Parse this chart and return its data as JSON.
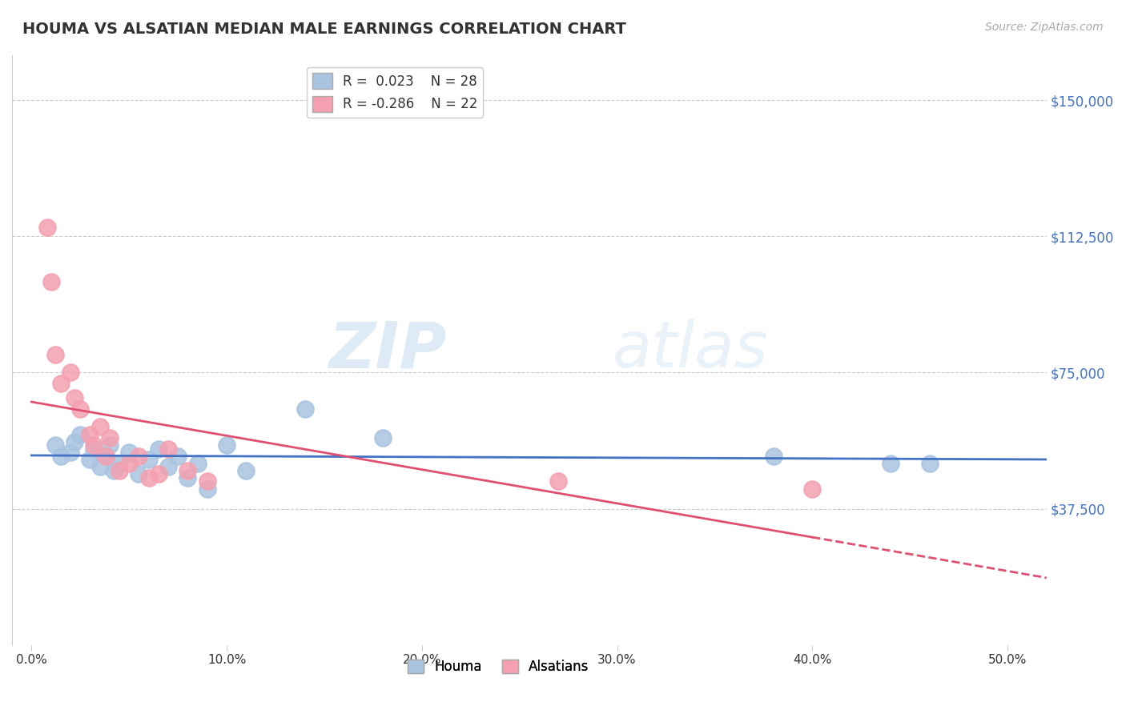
{
  "title": "HOUMA VS ALSATIAN MEDIAN MALE EARNINGS CORRELATION CHART",
  "source": "Source: ZipAtlas.com",
  "xlabel_ticks": [
    "0.0%",
    "10.0%",
    "20.0%",
    "30.0%",
    "40.0%",
    "50.0%"
  ],
  "xlabel_vals": [
    0.0,
    10.0,
    20.0,
    30.0,
    40.0,
    50.0
  ],
  "ylabel_ticks": [
    "$150,000",
    "$112,500",
    "$75,000",
    "$37,500"
  ],
  "ylabel_vals": [
    150000,
    112500,
    75000,
    37500
  ],
  "ylim": [
    0,
    162500
  ],
  "xlim": [
    -1.0,
    52.0
  ],
  "houma_R": 0.023,
  "houma_N": 28,
  "alsatian_R": -0.286,
  "alsatian_N": 22,
  "houma_color": "#a8c4e0",
  "alsatian_color": "#f4a0b0",
  "houma_line_color": "#4472C4",
  "alsatian_line_color": "#E05070",
  "watermark_zip": "ZIP",
  "watermark_atlas": "atlas",
  "houma_x": [
    1.2,
    1.5,
    2.0,
    2.2,
    2.5,
    3.0,
    3.2,
    3.5,
    3.8,
    4.0,
    4.2,
    4.5,
    5.0,
    5.5,
    6.0,
    6.5,
    7.0,
    7.5,
    8.0,
    8.5,
    9.0,
    10.0,
    11.0,
    14.0,
    18.0,
    38.0,
    44.0,
    46.0
  ],
  "houma_y": [
    55000,
    52000,
    53000,
    56000,
    58000,
    51000,
    54000,
    49000,
    52000,
    55000,
    48000,
    50000,
    53000,
    47000,
    51000,
    54000,
    49000,
    52000,
    46000,
    50000,
    43000,
    55000,
    48000,
    65000,
    57000,
    52000,
    50000,
    50000
  ],
  "alsatian_x": [
    0.8,
    1.0,
    1.2,
    1.5,
    2.0,
    2.2,
    2.5,
    3.0,
    3.2,
    3.5,
    3.8,
    4.0,
    4.5,
    5.0,
    5.5,
    6.0,
    6.5,
    7.0,
    8.0,
    9.0,
    27.0,
    40.0
  ],
  "alsatian_y": [
    115000,
    100000,
    80000,
    72000,
    75000,
    68000,
    65000,
    58000,
    55000,
    60000,
    52000,
    57000,
    48000,
    50000,
    52000,
    46000,
    47000,
    54000,
    48000,
    45000,
    45000,
    43000
  ]
}
